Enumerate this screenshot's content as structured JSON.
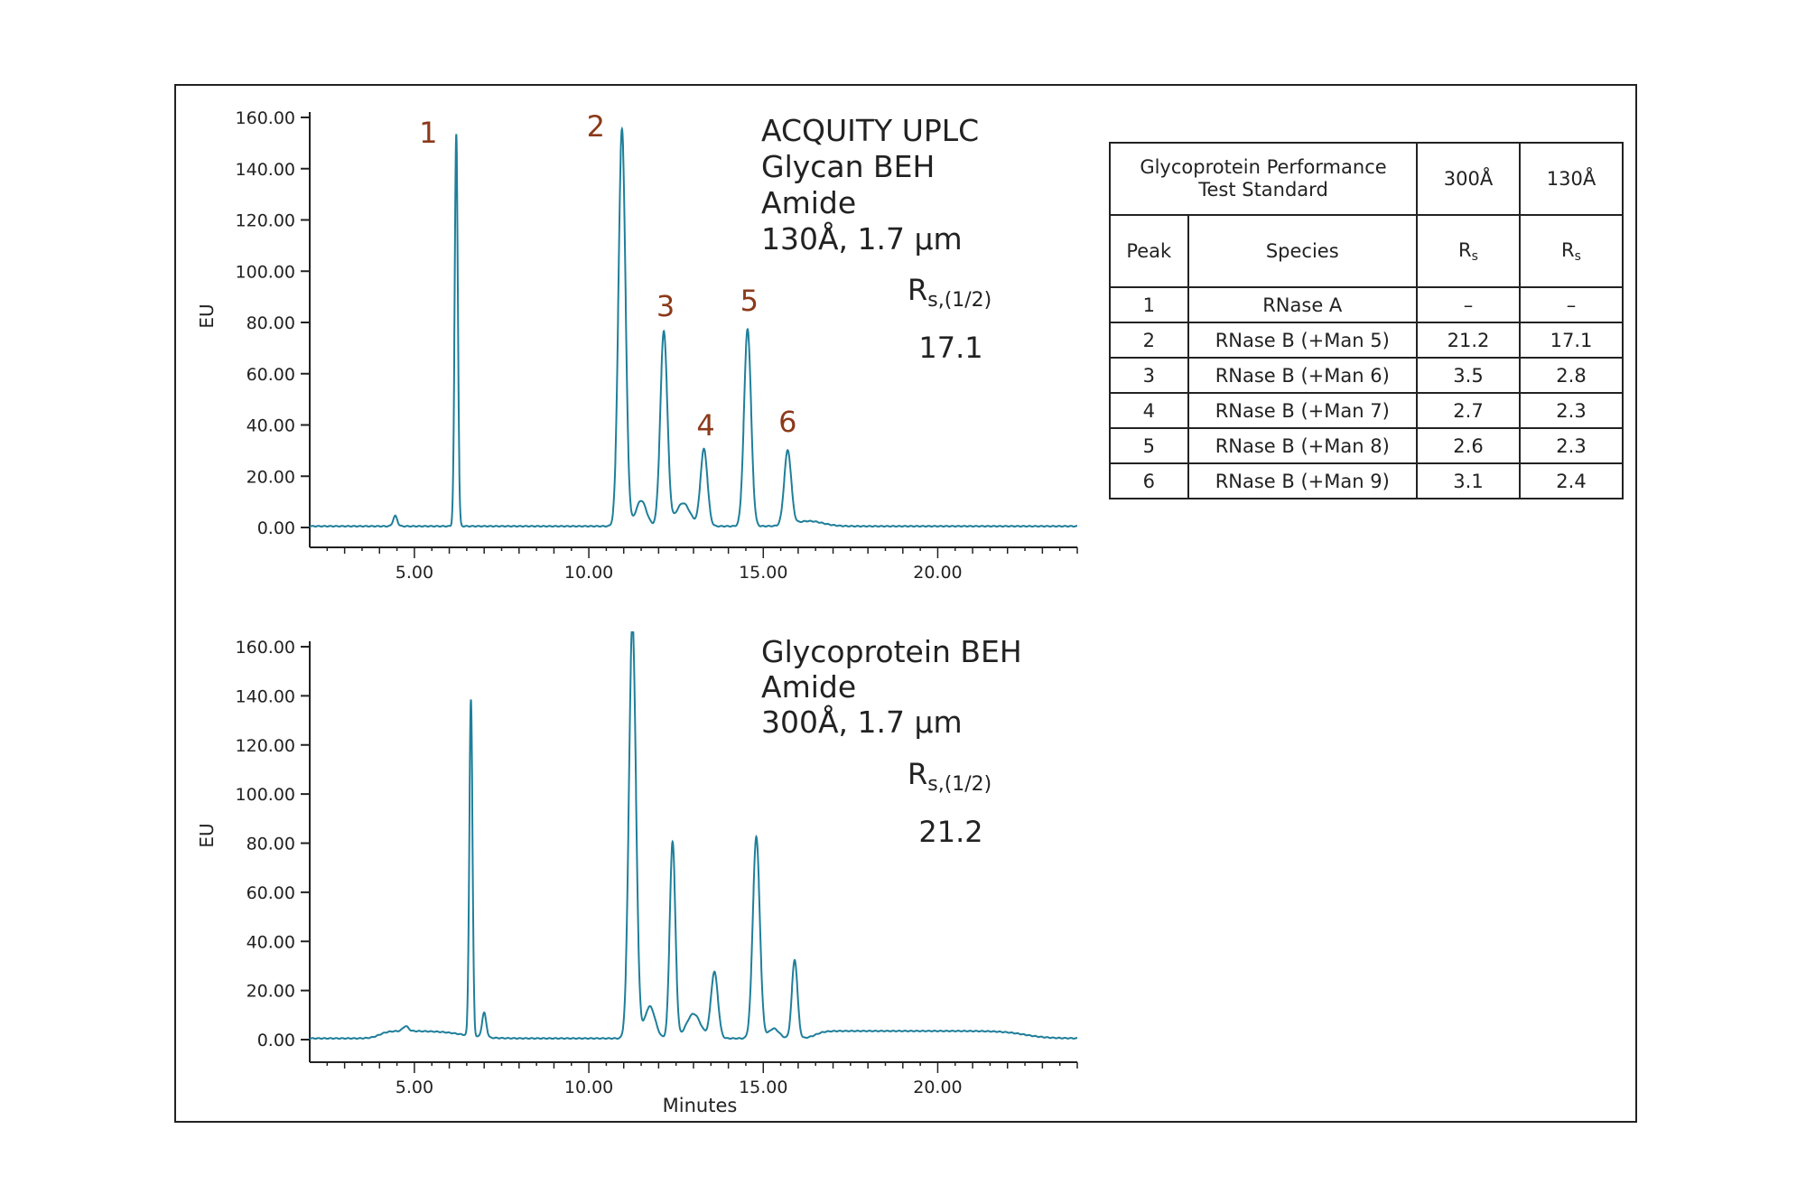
{
  "colors": {
    "trace": "#1f7f9a",
    "peak_label": "#8b3a1a",
    "axis": "#222222",
    "text": "#222222"
  },
  "chart_data": [
    {
      "type": "line",
      "name": "top",
      "xlabel": "",
      "ylabel": "EU",
      "xlim": [
        2.0,
        24.0
      ],
      "ylim": [
        0,
        160
      ],
      "xticks": [
        5.0,
        10.0,
        15.0,
        20.0
      ],
      "xtick_labels": [
        "5.00",
        "10.00",
        "15.00",
        "20.00"
      ],
      "yticks": [
        0,
        20,
        40,
        60,
        80,
        100,
        120,
        140,
        160
      ],
      "ytick_labels": [
        "0.00",
        "20.00",
        "40.00",
        "60.00",
        "80.00",
        "100.00",
        "120.00",
        "140.00",
        "160.00"
      ],
      "annotation_lines": [
        "ACQUITY UPLC",
        "Glycan BEH",
        "Amide",
        "130Å, 1.7 µm"
      ],
      "rs_label_main": "R",
      "rs_label_sub": "s,(1/2)",
      "rs_value": "17.1",
      "peak_labels": [
        {
          "text": "1",
          "x": 5.4
        },
        {
          "text": "2",
          "x": 10.2
        },
        {
          "text": "3",
          "x": 12.2
        },
        {
          "text": "4",
          "x": 13.35
        },
        {
          "text": "5",
          "x": 14.6
        },
        {
          "text": "6",
          "x": 15.7
        }
      ],
      "baseline": 0.5,
      "peaks": [
        {
          "x": 4.45,
          "h": 4,
          "w": 0.06
        },
        {
          "x": 6.2,
          "h": 153,
          "w": 0.045
        },
        {
          "x": 10.95,
          "h": 155,
          "w": 0.1
        },
        {
          "x": 11.5,
          "h": 10,
          "w": 0.15
        },
        {
          "x": 12.15,
          "h": 76,
          "w": 0.1
        },
        {
          "x": 12.7,
          "h": 9,
          "w": 0.2
        },
        {
          "x": 13.3,
          "h": 30,
          "w": 0.1
        },
        {
          "x": 14.55,
          "h": 77,
          "w": 0.1
        },
        {
          "x": 15.7,
          "h": 29,
          "w": 0.1
        },
        {
          "x": 16.3,
          "h": 2,
          "w": 0.4
        }
      ]
    },
    {
      "type": "line",
      "name": "bottom",
      "xlabel": "Minutes",
      "ylabel": "EU",
      "xlim": [
        2.0,
        24.0
      ],
      "ylim": [
        0,
        160
      ],
      "xticks": [
        5.0,
        10.0,
        15.0,
        20.0
      ],
      "xtick_labels": [
        "5.00",
        "10.00",
        "15.00",
        "20.00"
      ],
      "yticks": [
        0,
        20,
        40,
        60,
        80,
        100,
        120,
        140,
        160
      ],
      "ytick_labels": [
        "0.00",
        "20.00",
        "40.00",
        "60.00",
        "80.00",
        "100.00",
        "120.00",
        "140.00",
        "160.00"
      ],
      "annotation_lines": [
        "Glycoprotein BEH",
        "Amide",
        "300Å, 1.7 µm"
      ],
      "rs_label_main": "R",
      "rs_label_sub": "s,(1/2)",
      "rs_value": "21.2",
      "peak_labels": [],
      "baseline": 0.5,
      "peaks": [
        {
          "x": 4.75,
          "h": 2,
          "w": 0.08
        },
        {
          "x": 6.62,
          "h": 137,
          "w": 0.045
        },
        {
          "x": 7.0,
          "h": 10,
          "w": 0.06
        },
        {
          "x": 11.25,
          "h": 170,
          "w": 0.1
        },
        {
          "x": 11.75,
          "h": 13,
          "w": 0.15
        },
        {
          "x": 12.4,
          "h": 80,
          "w": 0.08
        },
        {
          "x": 13.0,
          "h": 10,
          "w": 0.2
        },
        {
          "x": 13.6,
          "h": 27,
          "w": 0.1
        },
        {
          "x": 14.8,
          "h": 82,
          "w": 0.1
        },
        {
          "x": 15.3,
          "h": 4,
          "w": 0.15
        },
        {
          "x": 15.9,
          "h": 32,
          "w": 0.08
        }
      ],
      "shelves": [
        {
          "from": 4.0,
          "to": 6.4,
          "h": 3
        },
        {
          "from": 16.5,
          "to": 22.5,
          "h": 3
        }
      ]
    }
  ],
  "table": {
    "header_group": "Glycoprotein Performance Test Standard",
    "header_group_line1": "Glycoprotein Performance",
    "header_group_line2": "Test Standard",
    "col_300": "300Å",
    "col_130": "130Å",
    "col_peak": "Peak",
    "col_species": "Species",
    "rs_main": "R",
    "rs_sub": "s",
    "rows": [
      {
        "peak": "1",
        "species": "RNase A",
        "rs300": "–",
        "rs130": "–"
      },
      {
        "peak": "2",
        "species": "RNase B (+Man 5)",
        "rs300": "21.2",
        "rs130": "17.1"
      },
      {
        "peak": "3",
        "species": "RNase B (+Man 6)",
        "rs300": "3.5",
        "rs130": "2.8"
      },
      {
        "peak": "4",
        "species": "RNase B (+Man 7)",
        "rs300": "2.7",
        "rs130": "2.3"
      },
      {
        "peak": "5",
        "species": "RNase B (+Man 8)",
        "rs300": "2.6",
        "rs130": "2.3"
      },
      {
        "peak": "6",
        "species": "RNase B (+Man 9)",
        "rs300": "3.1",
        "rs130": "2.4"
      }
    ]
  }
}
